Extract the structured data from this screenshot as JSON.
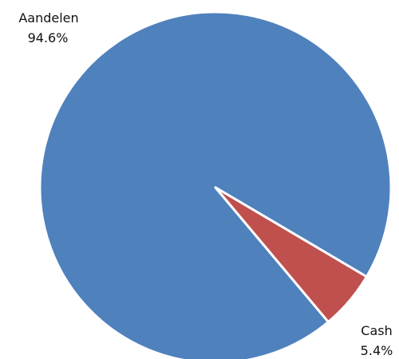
{
  "chart_data": {
    "type": "pie",
    "title": "",
    "slices": [
      {
        "label": "Aandelen",
        "value": 94.6,
        "display": "94.6%",
        "color": "#4f81bd"
      },
      {
        "label": "Cash",
        "value": 5.4,
        "display": "5.4%",
        "color": "#c0504d"
      }
    ]
  }
}
